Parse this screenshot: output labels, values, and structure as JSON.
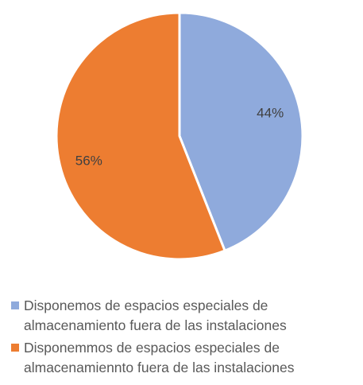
{
  "chart_data": {
    "type": "pie",
    "categories": [
      "Disponemos de espacios especiales de almacenamiento fuera de las instalaciones",
      "Disponemmos de espacios especiales de almacenamiennto fuera de las instalaciones"
    ],
    "values": [
      44,
      56
    ],
    "value_labels": [
      "44%",
      "56%"
    ],
    "colors": [
      "#8faadc",
      "#ed7d31"
    ],
    "legend": "bottom"
  }
}
